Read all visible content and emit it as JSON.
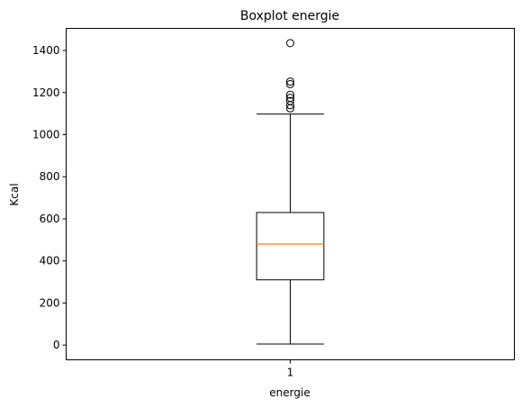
{
  "chart_data": {
    "type": "boxplot",
    "title": "Boxplot energie",
    "xlabel": "energie",
    "ylabel": "Kcal",
    "categories": [
      "1"
    ],
    "ylim": [
      -70,
      1505
    ],
    "yticks": [
      0,
      200,
      400,
      600,
      800,
      1000,
      1200,
      1400
    ],
    "grid": false,
    "boxes": [
      {
        "category": "1",
        "whisker_low": 5,
        "q1": 310,
        "median": 480,
        "q3": 630,
        "whisker_high": 1098,
        "outliers": [
          1125,
          1140,
          1160,
          1175,
          1190,
          1240,
          1252,
          1435
        ]
      }
    ],
    "colors": {
      "box": "#000000",
      "median": "#ff7f0e",
      "outlier": "#000000"
    }
  }
}
